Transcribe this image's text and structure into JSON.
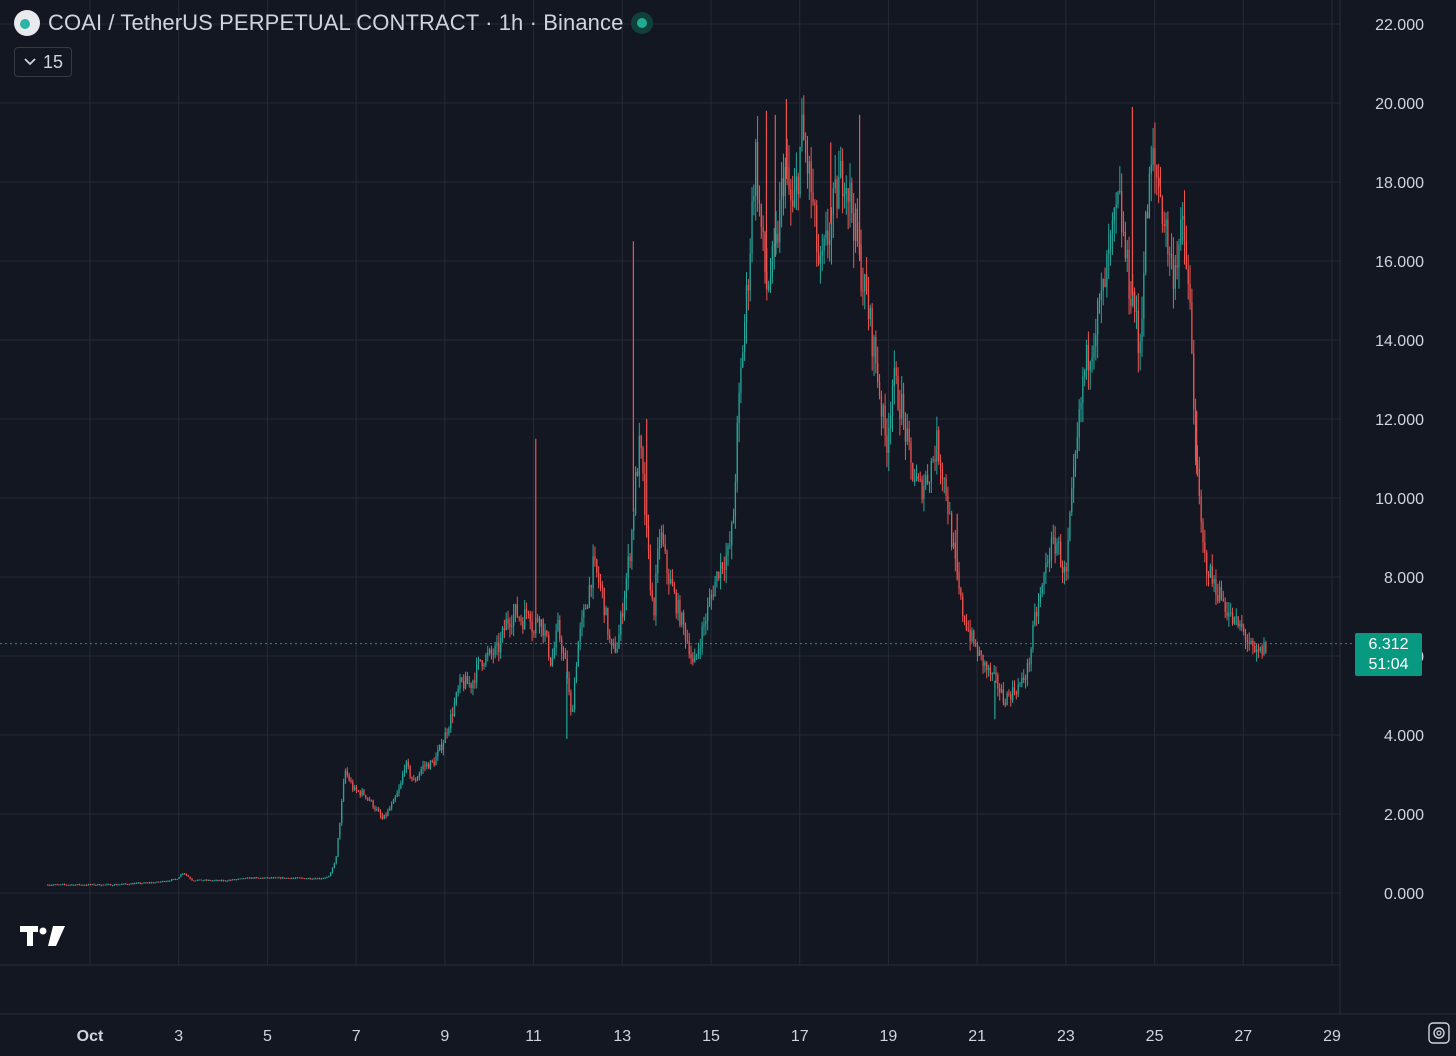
{
  "header": {
    "symbol_title": "COAI / TetherUS PERPETUAL CONTRACT · 1h · Binance",
    "indicator_count": "15"
  },
  "colors": {
    "background": "#131722",
    "grid": "#262a36",
    "up": "#26a69a",
    "down": "#ef5350",
    "price_line": "#089981",
    "axis_text": "#d1d4dc"
  },
  "icons": {
    "symbol": "coin-icon",
    "status": "market-open-dot-icon",
    "collapse": "chevron-down-icon",
    "logo": "tradingview-logo-icon",
    "settings": "settings-icon"
  },
  "last_price": {
    "price": "6.312",
    "countdown": "51:04"
  },
  "chart_data": {
    "type": "candlestick",
    "title": "COAI / TetherUS PERPETUAL CONTRACT · 1h · Binance",
    "interval": "1h",
    "y_range": [
      -0.8,
      22.3
    ],
    "y_ticks": [
      "0.000",
      "2.000",
      "4.000",
      "6.000",
      "8.000",
      "10.000",
      "12.000",
      "14.000",
      "16.000",
      "18.000",
      "20.000",
      "22.000"
    ],
    "y_tick_values": [
      0,
      2,
      4,
      6,
      8,
      10,
      12,
      14,
      16,
      18,
      20,
      22
    ],
    "x_tick_labels": [
      "Oct",
      "3",
      "5",
      "7",
      "9",
      "11",
      "13",
      "15",
      "17",
      "19",
      "21",
      "23",
      "25",
      "27",
      "29"
    ],
    "x_tick_days": [
      1,
      3,
      5,
      7,
      9,
      11,
      13,
      15,
      17,
      19,
      21,
      23,
      25,
      27,
      29
    ],
    "x_range_days": [
      0.05,
      29.0
    ],
    "last_price": 6.312,
    "grid": true,
    "close_path": [
      [
        0.05,
        0.21
      ],
      [
        1.5,
        0.21
      ],
      [
        2.5,
        0.27
      ],
      [
        2.95,
        0.35
      ],
      [
        3.1,
        0.52
      ],
      [
        3.3,
        0.33
      ],
      [
        4.0,
        0.31
      ],
      [
        4.6,
        0.38
      ],
      [
        5.5,
        0.38
      ],
      [
        6.2,
        0.37
      ],
      [
        6.4,
        0.42
      ],
      [
        6.55,
        0.9
      ],
      [
        6.75,
        3.1
      ],
      [
        6.95,
        2.6
      ],
      [
        7.2,
        2.5
      ],
      [
        7.4,
        2.2
      ],
      [
        7.6,
        1.85
      ],
      [
        7.85,
        2.3
      ],
      [
        8.0,
        2.7
      ],
      [
        8.1,
        3.3
      ],
      [
        8.3,
        2.8
      ],
      [
        8.5,
        3.2
      ],
      [
        8.75,
        3.3
      ],
      [
        8.95,
        3.8
      ],
      [
        9.15,
        4.5
      ],
      [
        9.35,
        5.3
      ],
      [
        9.6,
        5.3
      ],
      [
        9.8,
        5.9
      ],
      [
        10.0,
        6.0
      ],
      [
        10.2,
        6.15
      ],
      [
        10.4,
        6.9
      ],
      [
        10.6,
        7.1
      ],
      [
        10.75,
        6.9
      ],
      [
        10.9,
        7.3
      ],
      [
        11.0,
        6.5
      ],
      [
        11.1,
        7.1
      ],
      [
        11.25,
        6.6
      ],
      [
        11.4,
        5.8
      ],
      [
        11.55,
        6.7
      ],
      [
        11.75,
        5.6
      ],
      [
        11.85,
        4.4
      ],
      [
        12.0,
        6.3
      ],
      [
        12.2,
        7.4
      ],
      [
        12.35,
        8.3
      ],
      [
        12.55,
        7.6
      ],
      [
        12.75,
        6.1
      ],
      [
        12.9,
        6.3
      ],
      [
        13.05,
        7.6
      ],
      [
        13.2,
        8.9
      ],
      [
        13.3,
        10.4
      ],
      [
        13.4,
        11.4
      ],
      [
        13.55,
        9.0
      ],
      [
        13.7,
        7.0
      ],
      [
        13.85,
        9.2
      ],
      [
        14.0,
        8.2
      ],
      [
        14.25,
        7.2
      ],
      [
        14.5,
        6.3
      ],
      [
        14.6,
        5.7
      ],
      [
        14.8,
        6.6
      ],
      [
        15.0,
        7.5
      ],
      [
        15.2,
        8.3
      ],
      [
        15.4,
        8.6
      ],
      [
        15.5,
        9.4
      ],
      [
        15.6,
        11.8
      ],
      [
        15.7,
        13.6
      ],
      [
        15.85,
        15.8
      ],
      [
        16.0,
        18.8
      ],
      [
        16.1,
        17.2
      ],
      [
        16.25,
        15.3
      ],
      [
        16.45,
        16.1
      ],
      [
        16.65,
        18.4
      ],
      [
        16.85,
        17.1
      ],
      [
        17.05,
        19.2
      ],
      [
        17.25,
        17.9
      ],
      [
        17.45,
        15.6
      ],
      [
        17.6,
        16.4
      ],
      [
        17.8,
        17.5
      ],
      [
        18.0,
        18.4
      ],
      [
        18.2,
        17.2
      ],
      [
        18.35,
        16.0
      ],
      [
        18.55,
        14.7
      ],
      [
        18.75,
        13.2
      ],
      [
        18.95,
        11.3
      ],
      [
        19.1,
        13.0
      ],
      [
        19.3,
        12.3
      ],
      [
        19.5,
        10.8
      ],
      [
        19.7,
        10.2
      ],
      [
        19.9,
        10.6
      ],
      [
        20.1,
        11.4
      ],
      [
        20.3,
        10.2
      ],
      [
        20.5,
        8.3
      ],
      [
        20.65,
        7.2
      ],
      [
        20.85,
        6.5
      ],
      [
        21.05,
        6.0
      ],
      [
        21.25,
        5.6
      ],
      [
        21.45,
        5.3
      ],
      [
        21.6,
        4.9
      ],
      [
        21.8,
        5.1
      ],
      [
        22.0,
        5.3
      ],
      [
        22.15,
        5.7
      ],
      [
        22.3,
        6.9
      ],
      [
        22.45,
        7.6
      ],
      [
        22.6,
        8.6
      ],
      [
        22.8,
        8.9
      ],
      [
        23.0,
        7.9
      ],
      [
        23.1,
        9.5
      ],
      [
        23.25,
        11.3
      ],
      [
        23.4,
        13.1
      ],
      [
        23.6,
        14.1
      ],
      [
        23.85,
        15.2
      ],
      [
        24.0,
        16.3
      ],
      [
        24.2,
        17.5
      ],
      [
        24.4,
        15.6
      ],
      [
        24.55,
        14.9
      ],
      [
        24.65,
        13.5
      ],
      [
        24.8,
        16.8
      ],
      [
        24.95,
        18.6
      ],
      [
        25.1,
        17.9
      ],
      [
        25.25,
        16.8
      ],
      [
        25.4,
        15.7
      ],
      [
        25.55,
        16.4
      ],
      [
        25.65,
        16.8
      ],
      [
        25.8,
        14.7
      ],
      [
        25.95,
        10.6
      ],
      [
        26.1,
        8.6
      ],
      [
        26.3,
        7.9
      ],
      [
        26.5,
        7.5
      ],
      [
        26.75,
        6.9
      ],
      [
        26.95,
        6.7
      ],
      [
        27.1,
        6.4
      ],
      [
        27.25,
        6.0
      ],
      [
        27.4,
        6.1
      ],
      [
        27.55,
        6.31
      ]
    ],
    "spikes": [
      [
        11.05,
        11.5
      ],
      [
        13.25,
        16.5
      ],
      [
        13.55,
        12.0
      ],
      [
        16.25,
        19.8
      ],
      [
        16.45,
        19.7
      ],
      [
        16.7,
        20.1
      ],
      [
        17.7,
        19.0
      ],
      [
        18.35,
        19.7
      ],
      [
        24.5,
        19.9
      ],
      [
        25.95,
        12.2
      ],
      [
        25.1,
        18.1
      ],
      [
        11.75,
        3.9
      ],
      [
        21.4,
        4.4
      ],
      [
        20.55,
        9.6
      ]
    ]
  }
}
